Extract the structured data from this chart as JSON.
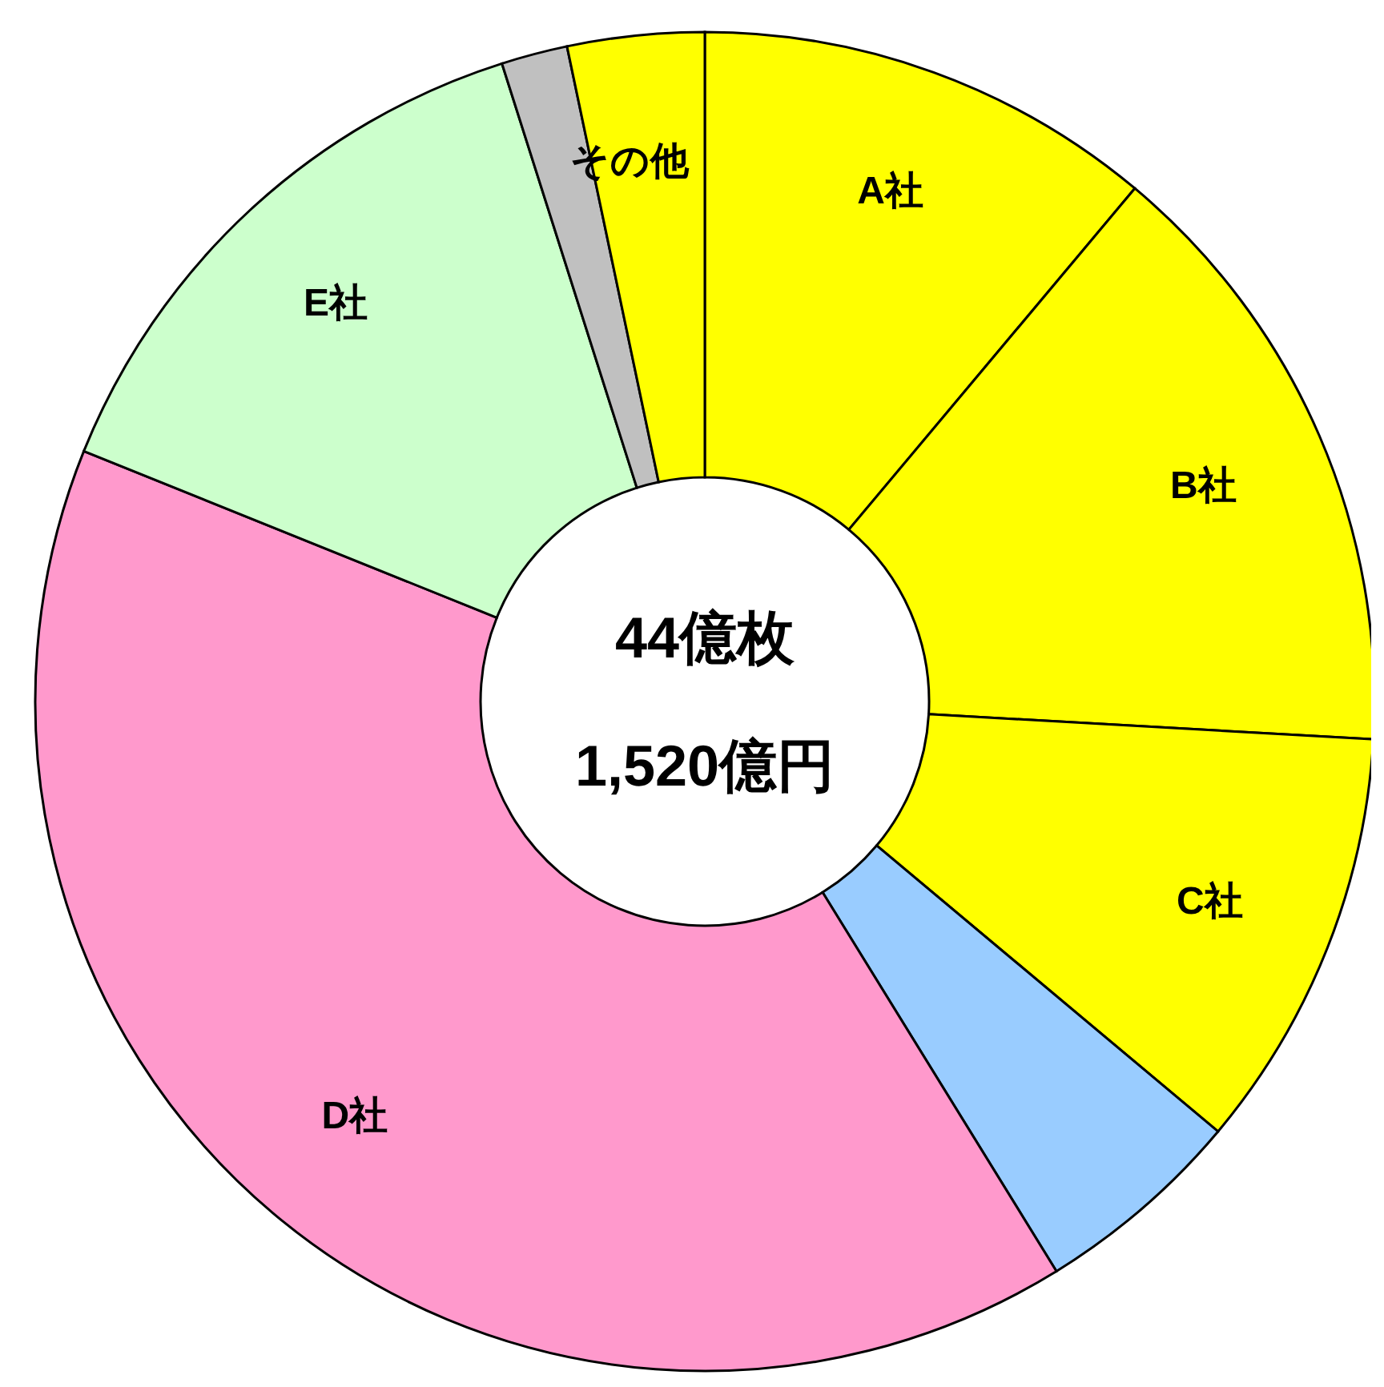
{
  "chart_data": {
    "type": "donut",
    "categories": [
      "A社",
      "B社",
      "C社",
      null,
      "D社",
      "E社",
      null,
      "その他"
    ],
    "values": [
      11.1,
      14.8,
      10.2,
      5.1,
      39.9,
      14.0,
      1.6,
      3.3
    ],
    "colors": [
      "#ffff00",
      "#ffff00",
      "#ffff00",
      "#99ccff",
      "#ff99cc",
      "#ccffcc",
      "#c0c0c0",
      "#ffff00"
    ],
    "annotations": [
      "44億枚",
      "1,520億円"
    ]
  }
}
